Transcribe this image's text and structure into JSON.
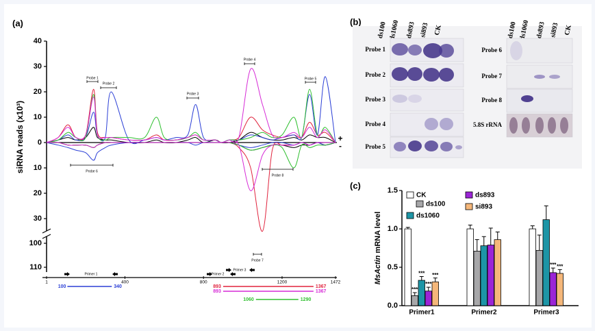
{
  "figure": {
    "panel_labels": [
      "(a)",
      "(b)",
      "(c)"
    ]
  },
  "blot": {
    "columns": [
      "ds100",
      "ds1060",
      "ds893",
      "si893",
      "CK"
    ],
    "left_rows": [
      "Probe 1",
      "Probe 2",
      "Probe 3",
      "Probe 4",
      "Probe 5"
    ],
    "right_rows": [
      "Probe 6",
      "Probe 7",
      "Probe 8",
      "5.8S rRNA"
    ]
  },
  "chart_data": [
    {
      "type": "line",
      "ylabel": "siRNA reads (x10³)",
      "strand_labels": [
        "+",
        "-"
      ],
      "x": [
        1,
        60,
        110,
        150,
        200,
        240,
        260,
        300,
        330,
        420,
        500,
        560,
        600,
        660,
        720,
        760,
        800,
        860,
        890,
        930,
        980,
        1040,
        1100,
        1150,
        1200,
        1260,
        1300,
        1340,
        1380,
        1420,
        1472
      ],
      "xlim": [
        1,
        1472
      ],
      "xticks": [
        1,
        400,
        800,
        1200,
        1472
      ],
      "ylim": [
        0,
        40
      ],
      "yticks": [
        0,
        10,
        20,
        30,
        40
      ],
      "ylim_antisense": [
        0,
        35
      ],
      "yticks_antisense": [
        10,
        20,
        30
      ],
      "ylim_break": [
        95,
        112
      ],
      "yticks_break": [
        100,
        110
      ],
      "series": [
        {
          "color": "#000000",
          "values": [
            0,
            1,
            2,
            1,
            2,
            6,
            2,
            1,
            1,
            0,
            0,
            1,
            0,
            0,
            1,
            2,
            0,
            1,
            0,
            0,
            1,
            4,
            2,
            1,
            1,
            2,
            1,
            3,
            2,
            2,
            0
          ],
          "antisense": [
            0,
            0,
            1,
            1,
            1,
            2,
            1,
            0,
            0,
            0,
            0,
            0,
            0,
            0,
            0,
            0,
            0,
            0,
            0,
            0,
            1,
            3,
            2,
            1,
            1,
            2,
            1,
            1,
            0,
            1,
            0
          ]
        },
        {
          "color": "#e0223c",
          "values": [
            0,
            2,
            7,
            2,
            3,
            21,
            4,
            2,
            2,
            1,
            1,
            3,
            1,
            1,
            2,
            3,
            1,
            1,
            0,
            1,
            2,
            10,
            5,
            3,
            2,
            3,
            2,
            8,
            3,
            4,
            0
          ],
          "antisense": [
            0,
            0,
            1,
            1,
            1,
            2,
            1,
            0,
            0,
            0,
            0,
            0,
            0,
            0,
            0,
            0,
            0,
            0,
            0,
            0,
            2,
            10,
            35,
            3,
            1,
            1,
            0,
            1,
            0,
            1,
            0
          ]
        },
        {
          "color": "#2b3fd6",
          "values": [
            0,
            1,
            3,
            1,
            2,
            12,
            3,
            2,
            20,
            1,
            1,
            2,
            1,
            2,
            3,
            15,
            2,
            1,
            0,
            1,
            1,
            3,
            2,
            1,
            2,
            3,
            2,
            19,
            3,
            26,
            0
          ],
          "antisense": [
            0,
            1,
            2,
            3,
            4,
            7,
            4,
            2,
            1,
            0,
            0,
            0,
            0,
            0,
            0,
            1,
            0,
            0,
            0,
            0,
            1,
            2,
            1,
            0,
            0,
            1,
            0,
            1,
            0,
            1,
            0
          ]
        },
        {
          "color": "#2fbf2f",
          "values": [
            0,
            1,
            4,
            2,
            2,
            19,
            3,
            1,
            2,
            2,
            2,
            10,
            2,
            1,
            2,
            4,
            1,
            1,
            0,
            1,
            1,
            2,
            4,
            2,
            3,
            10,
            2,
            21,
            3,
            6,
            0
          ],
          "antisense": [
            0,
            0,
            1,
            1,
            1,
            2,
            1,
            0,
            0,
            0,
            0,
            0,
            0,
            0,
            0,
            0,
            0,
            0,
            0,
            0,
            1,
            3,
            2,
            1,
            2,
            10,
            1,
            2,
            1,
            1,
            0
          ]
        },
        {
          "color": "#d62ad6",
          "values": [
            0,
            2,
            6,
            2,
            3,
            18,
            3,
            2,
            2,
            1,
            1,
            2,
            1,
            1,
            2,
            3,
            1,
            1,
            0,
            1,
            2,
            29,
            15,
            3,
            2,
            4,
            2,
            6,
            2,
            5,
            0
          ],
          "antisense": [
            0,
            0,
            1,
            1,
            1,
            2,
            1,
            0,
            0,
            0,
            0,
            0,
            0,
            0,
            0,
            0,
            0,
            0,
            0,
            0,
            1,
            19,
            5,
            1,
            1,
            1,
            0,
            1,
            0,
            0,
            0
          ]
        }
      ],
      "probes": [
        "Probe 1",
        "Probe 2",
        "Probe 3",
        "Probe 4",
        "Probe 5",
        "Probe 6",
        "Probe 7",
        "Probe 8"
      ],
      "primers": [
        "Primer 1",
        "Primer 2",
        "Primer 3"
      ],
      "segments": [
        {
          "color": "#2b3fd6",
          "start": 100,
          "end": 340
        },
        {
          "color": "#e0223c",
          "start": 893,
          "end": 1367
        },
        {
          "color": "#d62ad6",
          "start": 893,
          "end": 1367
        },
        {
          "color": "#2fbf2f",
          "start": 1060,
          "end": 1290
        }
      ]
    },
    {
      "type": "bar",
      "ylabel_gene": "MsActin",
      "ylabel": " mRNA level",
      "categories": [
        "Primer1",
        "Primer2",
        "Primer3"
      ],
      "ylim": [
        0,
        1.5
      ],
      "yticks": [
        {
          "value": 0,
          "label": "0.0"
        },
        {
          "value": 0.5,
          "label": "0.5"
        },
        {
          "value": 1,
          "label": "1.0"
        },
        {
          "value": 1.5,
          "label": "1.5"
        }
      ],
      "series": [
        {
          "name": "CK",
          "color": "#ffffff",
          "values": [
            1.0,
            1.0,
            1.0
          ],
          "errors": [
            0.02,
            0.05,
            0.04
          ],
          "annotations": [
            null,
            null,
            null
          ]
        },
        {
          "name": "ds100",
          "color": "#a7a7a9",
          "values": [
            0.13,
            0.71,
            0.72
          ],
          "errors": [
            0.04,
            0.15,
            0.2
          ],
          "annotations": [
            "***",
            null,
            null
          ]
        },
        {
          "name": "ds1060",
          "color": "#1d95a6",
          "values": [
            0.33,
            0.78,
            1.12
          ],
          "errors": [
            0.05,
            0.12,
            0.18
          ],
          "annotations": [
            "***",
            null,
            null
          ]
        },
        {
          "name": "ds893",
          "color": "#9b25d6",
          "values": [
            0.19,
            0.79,
            0.43
          ],
          "errors": [
            0.05,
            0.22,
            0.06
          ],
          "annotations": [
            "***",
            null,
            "***"
          ]
        },
        {
          "name": "si893",
          "color": "#f5b77a",
          "values": [
            0.31,
            0.86,
            0.42
          ],
          "errors": [
            0.05,
            0.1,
            0.05
          ],
          "annotations": [
            "***",
            null,
            "***"
          ]
        }
      ]
    }
  ]
}
